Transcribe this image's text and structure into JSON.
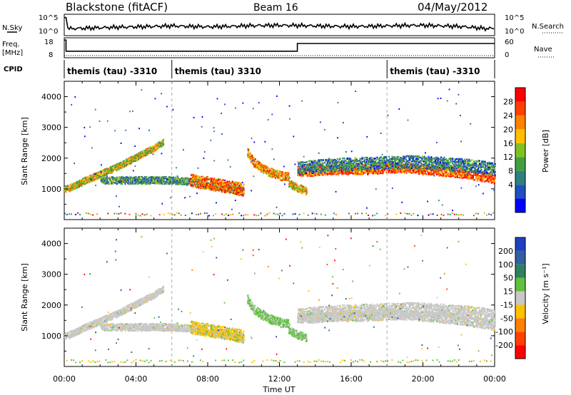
{
  "header": {
    "station": "Blackstone (fitACF)",
    "beam": "Beam 16",
    "date": "04/May/2012"
  },
  "side_labels": {
    "nsky": "N.Sky",
    "freq": "Freq.",
    "freq_unit": "[MHz]",
    "cpid": "CPID",
    "nsearch": "N.Search",
    "nave": "Nave"
  },
  "cpid_segments": [
    {
      "label": "themis (tau) -3310",
      "start_hour": 0,
      "end_hour": 6
    },
    {
      "label": "themis (tau) 3310",
      "start_hour": 6,
      "end_hour": 18
    },
    {
      "label": "themis (tau) -3310",
      "start_hour": 18,
      "end_hour": 24
    }
  ],
  "chart_data": [
    {
      "type": "line",
      "panel": "noise",
      "x_range": [
        0,
        24
      ],
      "y_left_ticks": [
        "10^5",
        "10^0"
      ],
      "y_right_ticks": [
        "10^5",
        "10^0"
      ],
      "series": [
        {
          "name": "N.Sky",
          "x": [
            0,
            0.1,
            0.2,
            1,
            2,
            3,
            4,
            5,
            6,
            7,
            8,
            9,
            10,
            11,
            12,
            13,
            14,
            15,
            16,
            17,
            18,
            19,
            20,
            21,
            22,
            23,
            23.5,
            24
          ],
          "y": [
            0.9,
            0.6,
            0.3,
            0.32,
            0.35,
            0.38,
            0.4,
            0.42,
            0.45,
            0.42,
            0.4,
            0.42,
            0.45,
            0.47,
            0.48,
            0.47,
            0.45,
            0.43,
            0.42,
            0.43,
            0.45,
            0.47,
            0.48,
            0.45,
            0.42,
            0.35,
            0.3,
            0.32
          ]
        }
      ]
    },
    {
      "type": "line",
      "panel": "frequency",
      "x_range": [
        0,
        24
      ],
      "y_left_ticks": [
        "18",
        "8"
      ],
      "y_right_ticks": [
        "60",
        "0"
      ],
      "series": [
        {
          "name": "Freq.",
          "x": [
            0,
            0.1,
            0.1,
            13,
            13,
            24
          ],
          "y": [
            0.95,
            0.95,
            0.3,
            0.3,
            0.75,
            0.75
          ]
        }
      ]
    },
    {
      "type": "heatmap",
      "panel": "power",
      "xlabel": "",
      "ylabel": "Slant Range [km]",
      "x_range": [
        0,
        24
      ],
      "ylim": [
        0,
        4500
      ],
      "y_ticks": [
        1000,
        2000,
        3000,
        4000
      ],
      "colorbar": {
        "label": "Power [dB]",
        "ticks": [
          "4",
          "8",
          "12",
          "16",
          "20",
          "24",
          "28"
        ],
        "colors": [
          "#0000ff",
          "#2050c0",
          "#308080",
          "#40a040",
          "#80c020",
          "#ffc000",
          "#ff8000",
          "#ff4000",
          "#ff0000"
        ]
      },
      "bands": [
        {
          "x": [
            0,
            0.5,
            1,
            2,
            3,
            4,
            5,
            5.5
          ],
          "y": [
            1000,
            1100,
            1250,
            1500,
            1750,
            2050,
            2350,
            2550
          ],
          "width": 140,
          "level": 0.55
        },
        {
          "x": [
            2,
            3,
            4,
            5,
            6,
            7,
            8,
            9,
            10
          ],
          "y": [
            1300,
            1300,
            1300,
            1300,
            1300,
            1250,
            1150,
            1050,
            950
          ],
          "width": 150,
          "level": 0.35
        },
        {
          "x": [
            7,
            8,
            9,
            10
          ],
          "y": [
            1300,
            1200,
            1100,
            1000
          ],
          "width": 260,
          "level": 0.75
        },
        {
          "x": [
            10.2,
            10.5,
            11,
            11.5,
            12,
            12.5
          ],
          "y": [
            2200,
            1900,
            1700,
            1550,
            1450,
            1400
          ],
          "width": 180,
          "level": 0.7
        },
        {
          "x": [
            12.5,
            13,
            13.5
          ],
          "y": [
            1200,
            1050,
            950
          ],
          "width": 160,
          "level": 0.6
        },
        {
          "x": [
            13,
            14,
            15,
            16,
            17,
            18,
            19,
            20,
            21,
            22,
            23,
            24
          ],
          "y": [
            1600,
            1600,
            1650,
            1650,
            1650,
            1700,
            1700,
            1650,
            1600,
            1550,
            1450,
            1350
          ],
          "width": 200,
          "level": 0.8
        },
        {
          "x": [
            13,
            15,
            17,
            19,
            21,
            23,
            24
          ],
          "y": [
            1700,
            1800,
            1850,
            1900,
            1850,
            1750,
            1650
          ],
          "width": 260,
          "level": 0.3
        }
      ]
    },
    {
      "type": "heatmap",
      "panel": "velocity",
      "xlabel": "Time UT",
      "ylabel": "Slant Range [km]",
      "x_range": [
        0,
        24
      ],
      "ylim": [
        0,
        4500
      ],
      "y_ticks": [
        1000,
        2000,
        3000,
        4000
      ],
      "x_ticks": [
        "00:00",
        "04:00",
        "08:00",
        "12:00",
        "16:00",
        "20:00",
        "00:00"
      ],
      "colorbar": {
        "label": "Velocity [m s⁻¹]",
        "ticks": [
          "200",
          "100",
          "50",
          "15",
          "-15",
          "-50",
          "-100",
          "-200"
        ],
        "colors": [
          "#2040c0",
          "#3060a0",
          "#308060",
          "#60c040",
          "#c8c8c8",
          "#ffc000",
          "#ff8000",
          "#ff4000",
          "#ff0000"
        ]
      },
      "bands": [
        {
          "x": [
            0,
            0.5,
            1,
            2,
            3,
            4,
            5,
            5.5
          ],
          "y": [
            1000,
            1100,
            1250,
            1500,
            1750,
            2050,
            2350,
            2550
          ],
          "width": 140,
          "level": "grey"
        },
        {
          "x": [
            2,
            3,
            4,
            5,
            6,
            7,
            8,
            9,
            10
          ],
          "y": [
            1300,
            1300,
            1300,
            1300,
            1300,
            1250,
            1150,
            1050,
            950
          ],
          "width": 150,
          "level": "grey"
        },
        {
          "x": [
            7,
            8,
            9,
            10
          ],
          "y": [
            1300,
            1200,
            1100,
            1000
          ],
          "width": 260,
          "level": "orange"
        },
        {
          "x": [
            10.2,
            10.5,
            11,
            11.5,
            12,
            12.5
          ],
          "y": [
            2200,
            1900,
            1700,
            1550,
            1450,
            1400
          ],
          "width": 180,
          "level": "green"
        },
        {
          "x": [
            12.5,
            13,
            13.5
          ],
          "y": [
            1200,
            1050,
            950
          ],
          "width": 160,
          "level": "green"
        },
        {
          "x": [
            13,
            14,
            15,
            16,
            17,
            18,
            19,
            20,
            21,
            22,
            23,
            24
          ],
          "y": [
            1600,
            1600,
            1650,
            1650,
            1650,
            1700,
            1700,
            1650,
            1600,
            1550,
            1450,
            1350
          ],
          "width": 200,
          "level": "grey"
        },
        {
          "x": [
            13,
            15,
            17,
            19,
            21,
            23,
            24
          ],
          "y": [
            1700,
            1800,
            1850,
            1900,
            1850,
            1750,
            1650
          ],
          "width": 260,
          "level": "grey"
        }
      ]
    }
  ]
}
